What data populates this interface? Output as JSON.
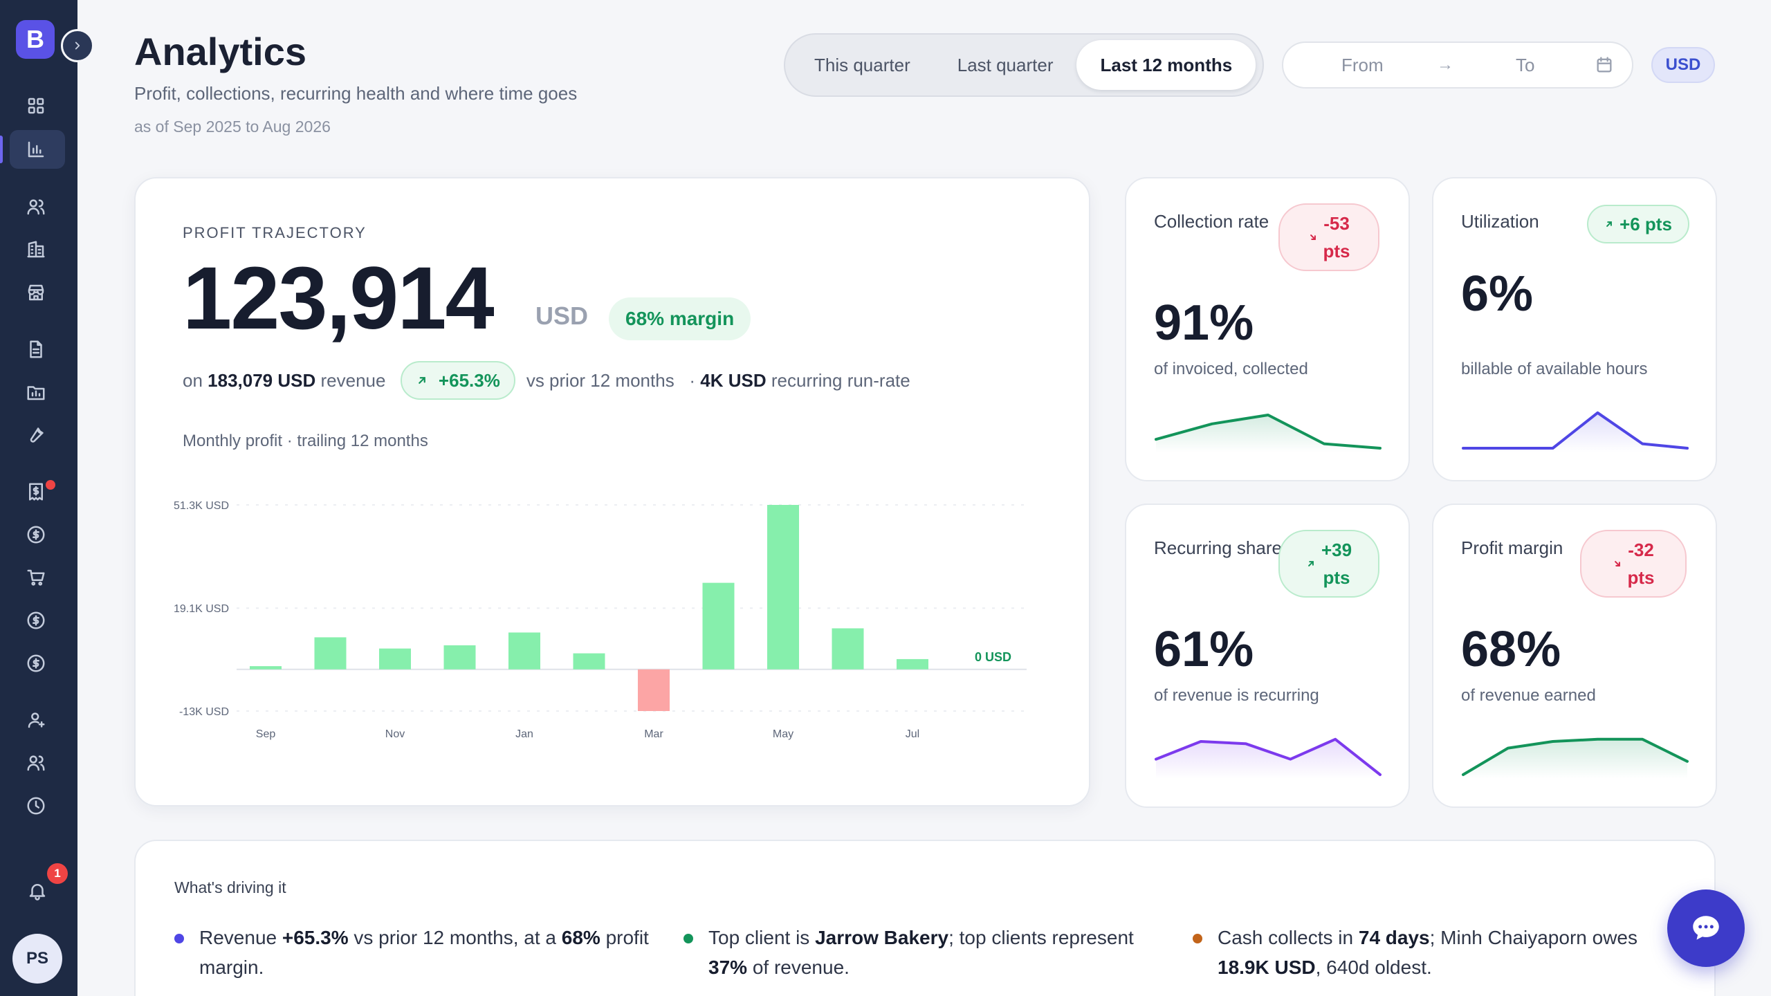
{
  "sidebar": {
    "logo_letter": "B",
    "items": [
      "dashboard-icon",
      "analytics-icon",
      "clients-icon",
      "companies-icon",
      "store-icon",
      "documents-icon",
      "reports-icon",
      "tools-icon",
      "invoices-icon",
      "payments-icon",
      "cart-icon",
      "expenses-icon",
      "billing-icon",
      "contacts-icon",
      "team-icon",
      "time-icon",
      "bell-icon"
    ],
    "notification_count": "1",
    "avatar_initials": "PS"
  },
  "header": {
    "title": "Analytics",
    "subtitle": "Profit, collections, recurring health and where time goes",
    "date_range_text": "as of Sep 2025 to Aug 2026",
    "period_tabs": [
      "This quarter",
      "Last quarter",
      "Last 12 months"
    ],
    "active_tab": 2,
    "date_from_placeholder": "From",
    "date_arrow": "→",
    "date_to_placeholder": "To",
    "currency": "USD"
  },
  "profit": {
    "label": "PROFIT TRAJECTORY",
    "value": "123,914",
    "unit": "USD",
    "margin_badge": "68% margin",
    "on_text": "on",
    "revenue": "183,079 USD",
    "revenue_suffix": "revenue",
    "change": "+65.3%",
    "change_suffix": "vs prior 12 months",
    "separator": "·",
    "run_rate": "4K USD",
    "run_rate_suffix": "recurring run-rate",
    "chart_caption": "Monthly profit · trailing 12 months"
  },
  "chart_data": {
    "type": "bar",
    "categories": [
      "Sep",
      "Oct",
      "Nov",
      "Dec",
      "Jan",
      "Feb",
      "Mar",
      "Apr",
      "May",
      "Jun",
      "Jul",
      "Aug"
    ],
    "x_tick_labels": [
      "Sep",
      "Nov",
      "Jan",
      "Mar",
      "May",
      "Jul"
    ],
    "values": [
      1000,
      10000,
      6500,
      7500,
      11500,
      5000,
      -13000,
      27000,
      51300,
      12800,
      3200,
      0
    ],
    "y_tick_labels": [
      "51.3K USD",
      "19.1K USD",
      "-13K USD"
    ],
    "y_ticks": [
      51300,
      19100,
      -13000
    ],
    "zero_label": "0 USD",
    "ylim": [
      -13000,
      51300
    ],
    "positive_color": "#86efac",
    "negative_color": "#fca5a5"
  },
  "kpis": [
    {
      "label": "Collection rate",
      "badge_value": "-53",
      "badge_unit": "pts",
      "direction": "down",
      "value": "91%",
      "sub": "of invoiced, collected",
      "spark": [
        0.2,
        0.55,
        0.75,
        0.1,
        0.0
      ],
      "color": "#13945a"
    },
    {
      "label": "Utilization",
      "badge_value": "+6 pts",
      "badge_unit": "",
      "direction": "up",
      "value": "6%",
      "sub": "billable of available hours",
      "spark": [
        0.0,
        0.0,
        0.0,
        0.8,
        0.1,
        0.0
      ],
      "color": "#4f46e5"
    },
    {
      "label": "Recurring share",
      "badge_value": "+39",
      "badge_unit": "pts",
      "direction": "up",
      "value": "61%",
      "sub": "of revenue is recurring",
      "spark": [
        0.35,
        0.75,
        0.7,
        0.35,
        0.8,
        0.0
      ],
      "color": "#7c3aed"
    },
    {
      "label": "Profit margin",
      "badge_value": "-32",
      "badge_unit": "pts",
      "direction": "down",
      "value": "68%",
      "sub": "of revenue earned",
      "spark": [
        0.0,
        0.6,
        0.75,
        0.8,
        0.8,
        0.3
      ],
      "color": "#13945a"
    }
  ],
  "drivers": {
    "title": "What's driving it",
    "items": [
      {
        "color": "#4f46e5",
        "parts": [
          "Revenue ",
          "+65.3%",
          " vs prior 12 months, at a ",
          "68%",
          " profit margin."
        ]
      },
      {
        "color": "#13945a",
        "parts": [
          "Top client is ",
          "Jarrow Bakery",
          "; top clients represent ",
          "37%",
          " of revenue."
        ]
      },
      {
        "color": "#c2641a",
        "parts": [
          "Cash collects in ",
          "74 days",
          "; Minh Chaiyaporn owes ",
          "18.9K USD",
          ", 640d oldest."
        ]
      }
    ]
  }
}
